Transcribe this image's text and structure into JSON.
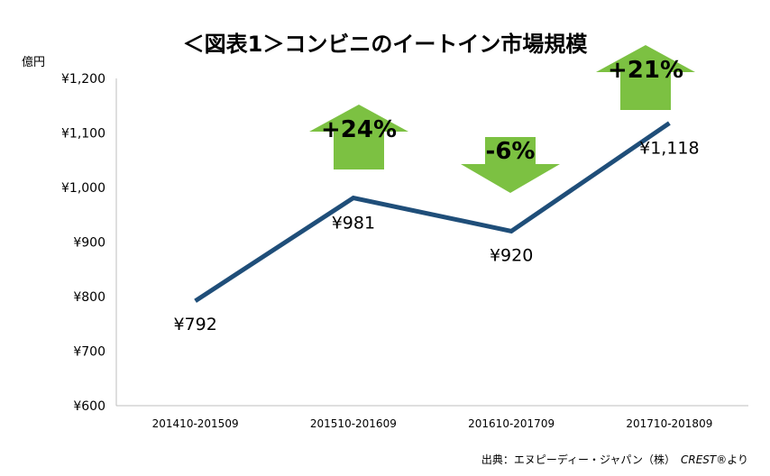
{
  "chart_data": {
    "type": "line",
    "title": "＜図表1＞コンビニのイートイン市場規模",
    "ylabel": "億円",
    "xlabel": "",
    "categories": [
      "201410-201509",
      "201510-201609",
      "201610-201709",
      "201710-201809"
    ],
    "values": [
      792,
      981,
      920,
      1118
    ],
    "data_labels": [
      "¥792",
      "¥981",
      "¥920",
      "¥1,118"
    ],
    "ylim": [
      600,
      1200
    ],
    "yticks": [
      1200,
      1100,
      1000,
      900,
      800,
      700,
      600
    ],
    "ytick_labels": [
      "¥1,200",
      "¥1,100",
      "¥1,000",
      "¥900",
      "¥800",
      "¥700",
      "¥600"
    ],
    "grid": false,
    "legend": "none",
    "line_color": "#1f4e79",
    "changes": [
      {
        "text": "+24%",
        "direction": "up",
        "color": "#7cc142"
      },
      {
        "text": "-6%",
        "direction": "down",
        "color": "#7cc142"
      },
      {
        "text": "+21%",
        "direction": "up",
        "color": "#7cc142"
      }
    ]
  },
  "source": {
    "text": "出典：エヌピーディー・ジャパン（株）",
    "brand": "CREST®",
    "suffix": "より"
  }
}
